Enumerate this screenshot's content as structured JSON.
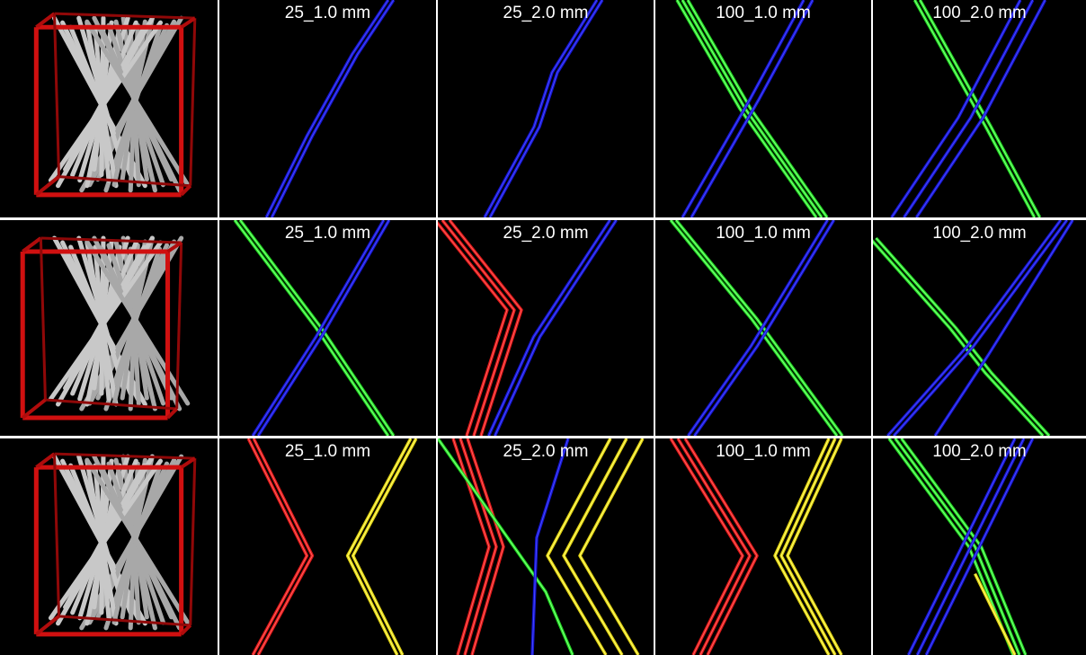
{
  "rows": [
    {
      "labels": [
        "25_1.0 mm",
        "25_2.0 mm",
        "100_1.0 mm",
        "100_2.0 mm"
      ]
    },
    {
      "labels": [
        "25_1.0 mm",
        "25_2.0 mm",
        "100_1.0 mm",
        "100_2.0 mm"
      ]
    },
    {
      "labels": [
        "25_1.0 mm",
        "25_2.0 mm",
        "100_1.0 mm",
        "100_2.0 mm"
      ]
    }
  ]
}
